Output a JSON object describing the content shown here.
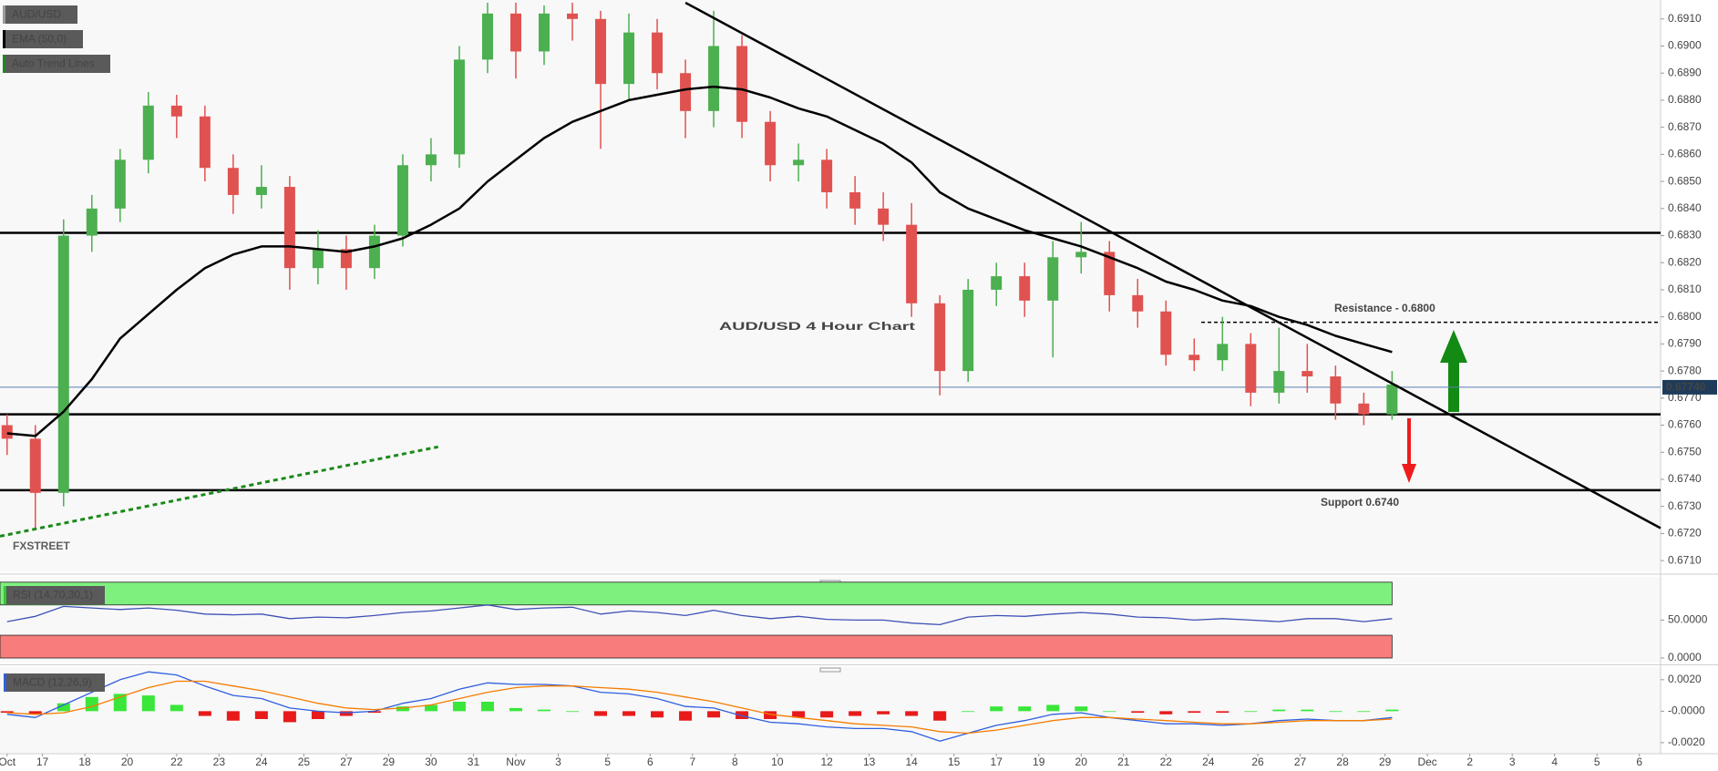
{
  "chart_data": [
    {
      "type": "candlestick",
      "title": "AUD/USD 4 Hour Chart",
      "symbol": "AUD/USD",
      "watermark": "FXSTREET",
      "up_color": "#4caf50",
      "down_color": "#e0524f",
      "x": [
        0,
        4,
        8,
        12,
        16,
        20,
        24,
        28,
        32,
        36,
        40,
        44,
        48,
        52,
        56,
        60,
        64,
        68,
        72,
        76,
        80,
        84,
        88,
        92,
        96,
        100,
        104,
        108,
        112,
        116,
        120,
        124,
        128,
        132,
        136,
        140,
        144,
        148,
        152,
        156,
        160,
        164,
        168,
        172,
        176,
        180,
        184,
        188,
        192,
        196
      ],
      "open": [
        0.676,
        0.6755,
        0.6735,
        0.683,
        0.684,
        0.6858,
        0.6878,
        0.6874,
        0.6855,
        0.6845,
        0.6848,
        0.6818,
        0.6825,
        0.6818,
        0.683,
        0.6856,
        0.686,
        0.6895,
        0.6912,
        0.6898,
        0.6912,
        0.691,
        0.6886,
        0.6905,
        0.689,
        0.6876,
        0.69,
        0.6872,
        0.6856,
        0.6858,
        0.6846,
        0.684,
        0.6834,
        0.6805,
        0.678,
        0.681,
        0.6815,
        0.6806,
        0.6822,
        0.6824,
        0.6808,
        0.6802,
        0.6786,
        0.6784,
        0.679,
        0.6772,
        0.678,
        0.6778,
        0.6768,
        0.6764
      ],
      "high": [
        0.6764,
        0.676,
        0.6836,
        0.6845,
        0.6862,
        0.6883,
        0.6882,
        0.6878,
        0.686,
        0.6856,
        0.6852,
        0.6832,
        0.683,
        0.6834,
        0.686,
        0.6866,
        0.69,
        0.6916,
        0.6916,
        0.6915,
        0.6916,
        0.6913,
        0.6912,
        0.691,
        0.6895,
        0.6913,
        0.6904,
        0.6876,
        0.6864,
        0.6862,
        0.6852,
        0.6846,
        0.6842,
        0.6808,
        0.6814,
        0.682,
        0.682,
        0.6828,
        0.6835,
        0.6828,
        0.6814,
        0.6806,
        0.6792,
        0.68,
        0.6794,
        0.6796,
        0.679,
        0.6782,
        0.6772,
        0.678
      ],
      "low": [
        0.6749,
        0.6722,
        0.673,
        0.6824,
        0.6835,
        0.6853,
        0.6866,
        0.685,
        0.6838,
        0.684,
        0.681,
        0.6812,
        0.681,
        0.6814,
        0.6826,
        0.685,
        0.6855,
        0.689,
        0.6888,
        0.6893,
        0.6902,
        0.6862,
        0.688,
        0.6884,
        0.6866,
        0.687,
        0.6866,
        0.685,
        0.685,
        0.684,
        0.6834,
        0.6828,
        0.68,
        0.6771,
        0.6776,
        0.6804,
        0.68,
        0.6785,
        0.6816,
        0.6802,
        0.6796,
        0.6782,
        0.678,
        0.678,
        0.6767,
        0.6768,
        0.6772,
        0.6762,
        0.676,
        0.6762
      ],
      "close": [
        0.6755,
        0.6735,
        0.683,
        0.684,
        0.6858,
        0.6878,
        0.6874,
        0.6855,
        0.6845,
        0.6848,
        0.6818,
        0.6825,
        0.6818,
        0.683,
        0.6856,
        0.686,
        0.6895,
        0.6912,
        0.6898,
        0.6912,
        0.691,
        0.6886,
        0.6905,
        0.689,
        0.6876,
        0.69,
        0.6872,
        0.6856,
        0.6858,
        0.6846,
        0.684,
        0.6834,
        0.6805,
        0.678,
        0.681,
        0.6815,
        0.6806,
        0.6822,
        0.6824,
        0.6808,
        0.6802,
        0.6786,
        0.6784,
        0.679,
        0.6772,
        0.678,
        0.6778,
        0.6768,
        0.6764,
        0.6775
      ],
      "series": [
        {
          "name": "EMA (50,0)",
          "color": "#000000",
          "values": [
            0.6757,
            0.6756,
            0.6765,
            0.6777,
            0.6792,
            0.6801,
            0.681,
            0.6818,
            0.6823,
            0.6826,
            0.6826,
            0.6825,
            0.6824,
            0.6826,
            0.6829,
            0.6834,
            0.684,
            0.685,
            0.6858,
            0.6866,
            0.6872,
            0.6876,
            0.688,
            0.6882,
            0.6884,
            0.6885,
            0.6884,
            0.6881,
            0.6877,
            0.6874,
            0.6869,
            0.6864,
            0.6857,
            0.6846,
            0.684,
            0.6836,
            0.6832,
            0.6829,
            0.6826,
            0.6822,
            0.6818,
            0.6813,
            0.681,
            0.6806,
            0.6804,
            0.68,
            0.6797,
            0.6793,
            0.679,
            0.6787
          ]
        }
      ],
      "trend_lines": {
        "name": "Auto Trend Lines",
        "lines": [
          {
            "x": [
              96,
              234
            ],
            "y": [
              0.6916,
              0.6722
            ],
            "color": "#000000",
            "dash": false
          },
          {
            "x": [
              -1,
              61
            ],
            "y": [
              0.6719,
              0.6752
            ],
            "color": "#1a8a1a",
            "dash": true
          }
        ]
      },
      "levels": [
        0.6831,
        0.6764,
        0.6736
      ],
      "dashed_level": {
        "from": 169,
        "value": 0.6798
      },
      "last_price": {
        "value": 0.6774,
        "label": "0.67740"
      },
      "annotations": [
        "Resistance - 0.6800",
        "Support 0.6740"
      ],
      "xlim": [
        -1,
        234
      ],
      "ylim": [
        0.6706,
        0.6917
      ],
      "yticks": [
        {
          "value": 0.671,
          "label": "0.6710"
        },
        {
          "value": 0.672,
          "label": "0.6720"
        },
        {
          "value": 0.673,
          "label": "0.6730"
        },
        {
          "value": 0.674,
          "label": "0.6740"
        },
        {
          "value": 0.675,
          "label": "0.6750"
        },
        {
          "value": 0.676,
          "label": "0.6760"
        },
        {
          "value": 0.677,
          "label": "0.6770"
        },
        {
          "value": 0.678,
          "label": "0.6780"
        },
        {
          "value": 0.679,
          "label": "0.6790"
        },
        {
          "value": 0.68,
          "label": "0.6800"
        },
        {
          "value": 0.681,
          "label": "0.6810"
        },
        {
          "value": 0.682,
          "label": "0.6820"
        },
        {
          "value": 0.683,
          "label": "0.6830"
        },
        {
          "value": 0.684,
          "label": "0.6840"
        },
        {
          "value": 0.685,
          "label": "0.6850"
        },
        {
          "value": 0.686,
          "label": "0.6860"
        },
        {
          "value": 0.687,
          "label": "0.6870"
        },
        {
          "value": 0.688,
          "label": "0.6880"
        },
        {
          "value": 0.689,
          "label": "0.6890"
        },
        {
          "value": 0.69,
          "label": "0.6900"
        },
        {
          "value": 0.691,
          "label": "0.6910"
        }
      ]
    },
    {
      "type": "line",
      "name": "RSI (14,70,30,1)",
      "color": "#3f51b5",
      "x": [
        0,
        4,
        8,
        12,
        16,
        20,
        24,
        28,
        32,
        36,
        40,
        44,
        48,
        52,
        56,
        60,
        64,
        68,
        72,
        76,
        80,
        84,
        88,
        92,
        96,
        100,
        104,
        108,
        112,
        116,
        120,
        124,
        128,
        132,
        136,
        140,
        144,
        148,
        152,
        156,
        160,
        164,
        168,
        172,
        176,
        180,
        184,
        188,
        192,
        196
      ],
      "values": [
        48,
        55,
        68,
        66,
        64,
        66,
        63,
        58,
        57,
        58,
        52,
        54,
        53,
        56,
        60,
        62,
        66,
        70,
        64,
        66,
        67,
        58,
        62,
        60,
        56,
        63,
        56,
        52,
        55,
        51,
        50,
        50,
        46,
        44,
        54,
        56,
        55,
        58,
        60,
        58,
        54,
        53,
        50,
        52,
        50,
        48,
        52,
        52,
        48,
        52
      ],
      "bands": [
        {
          "from": 70,
          "to": 100,
          "color": "#7ef07e"
        },
        {
          "from": 0,
          "to": 30,
          "color": "#f87c7c"
        }
      ],
      "xlim": [
        -1,
        234
      ],
      "ylim": [
        -6,
        107
      ],
      "yticks": [
        {
          "value": 50,
          "label": "50.0000"
        },
        {
          "value": 0,
          "label": "0.0000"
        }
      ]
    },
    {
      "type": "macd",
      "name": "MACD (12,26,9)",
      "x": [
        0,
        4,
        8,
        12,
        16,
        20,
        24,
        28,
        32,
        36,
        40,
        44,
        48,
        52,
        56,
        60,
        64,
        68,
        72,
        76,
        80,
        84,
        88,
        92,
        96,
        100,
        104,
        108,
        112,
        116,
        120,
        124,
        128,
        132,
        136,
        140,
        144,
        148,
        152,
        156,
        160,
        164,
        168,
        172,
        176,
        180,
        184,
        188,
        192,
        196
      ],
      "lines": [
        {
          "color": "#2f5fe0",
          "values": [
            -0.0002,
            -0.0004,
            0.0004,
            0.0012,
            0.002,
            0.0025,
            0.0023,
            0.0016,
            0.001,
            0.0008,
            0.0002,
            0.0,
            -0.0001,
            0.0,
            0.0005,
            0.0008,
            0.0014,
            0.0018,
            0.0017,
            0.0017,
            0.0016,
            0.0012,
            0.0011,
            0.0008,
            0.0003,
            0.0002,
            -0.0003,
            -0.0007,
            -0.0008,
            -0.001,
            -0.0011,
            -0.0011,
            -0.0013,
            -0.0019,
            -0.0014,
            -0.0009,
            -0.0006,
            -0.0002,
            -0.0001,
            -0.0004,
            -0.0006,
            -0.0008,
            -0.0008,
            -0.0009,
            -0.0008,
            -0.0006,
            -0.0005,
            -0.0006,
            -0.0006,
            -0.0004
          ]
        },
        {
          "color": "#f57c00",
          "values": [
            -0.0001,
            -0.0002,
            -0.0001,
            0.0003,
            0.0009,
            0.0015,
            0.0019,
            0.0019,
            0.0016,
            0.0013,
            0.0009,
            0.0005,
            0.0002,
            0.0001,
            0.0002,
            0.0004,
            0.0008,
            0.0012,
            0.0015,
            0.0016,
            0.0016,
            0.0015,
            0.0014,
            0.0012,
            0.0009,
            0.0006,
            0.0002,
            -0.0002,
            -0.0004,
            -0.0006,
            -0.0008,
            -0.0009,
            -0.001,
            -0.0013,
            -0.0014,
            -0.0012,
            -0.0009,
            -0.0006,
            -0.0004,
            -0.0004,
            -0.0005,
            -0.0006,
            -0.0007,
            -0.0008,
            -0.0008,
            -0.0007,
            -0.0006,
            -0.0006,
            -0.0006,
            -0.0005
          ]
        }
      ],
      "histogram": {
        "up_color": "#39e639",
        "down_color": "#e81a1a",
        "values": [
          -0.0001,
          -0.0002,
          0.0005,
          0.0009,
          0.0011,
          0.001,
          0.0004,
          -0.0003,
          -0.0006,
          -0.0005,
          -0.0007,
          -0.0005,
          -0.0003,
          -0.0001,
          0.0003,
          0.0004,
          0.0006,
          0.0006,
          0.0002,
          0.0001,
          0.0,
          -0.0003,
          -0.0003,
          -0.0004,
          -0.0006,
          -0.0004,
          -0.0005,
          -0.0005,
          -0.0004,
          -0.0004,
          -0.0003,
          -0.0002,
          -0.0003,
          -0.0006,
          0.0,
          0.0003,
          0.0003,
          0.0004,
          0.0003,
          0.0,
          -0.0001,
          -0.0002,
          -0.0001,
          -0.0001,
          0.0,
          0.0001,
          0.0001,
          0.0,
          0.0,
          0.0001
        ]
      },
      "xlim": [
        -1,
        234
      ],
      "ylim": [
        -0.0027,
        0.0028
      ],
      "yticks": [
        {
          "value": 0.002,
          "label": "0.0020"
        },
        {
          "value": 0,
          "label": "-0.0000"
        },
        {
          "value": -0.002,
          "label": "-0.0020"
        }
      ],
      "xticks": [
        {
          "value": 0,
          "label": "Oct"
        },
        {
          "value": 5,
          "label": "17"
        },
        {
          "value": 11,
          "label": "18"
        },
        {
          "value": 17,
          "label": "20"
        },
        {
          "value": 24,
          "label": "22"
        },
        {
          "value": 30,
          "label": "23"
        },
        {
          "value": 36,
          "label": "24"
        },
        {
          "value": 42,
          "label": "25"
        },
        {
          "value": 48,
          "label": "27"
        },
        {
          "value": 54,
          "label": "29"
        },
        {
          "value": 60,
          "label": "30"
        },
        {
          "value": 66,
          "label": "31"
        },
        {
          "value": 72,
          "label": "Nov"
        },
        {
          "value": 78,
          "label": "3"
        },
        {
          "value": 85,
          "label": "5"
        },
        {
          "value": 91,
          "label": "6"
        },
        {
          "value": 97,
          "label": "7"
        },
        {
          "value": 103,
          "label": "8"
        },
        {
          "value": 109,
          "label": "10"
        },
        {
          "value": 116,
          "label": "12"
        },
        {
          "value": 122,
          "label": "13"
        },
        {
          "value": 128,
          "label": "14"
        },
        {
          "value": 134,
          "label": "15"
        },
        {
          "value": 140,
          "label": "17"
        },
        {
          "value": 146,
          "label": "19"
        },
        {
          "value": 152,
          "label": "20"
        },
        {
          "value": 158,
          "label": "21"
        },
        {
          "value": 164,
          "label": "22"
        },
        {
          "value": 170,
          "label": "24"
        },
        {
          "value": 177,
          "label": "26"
        },
        {
          "value": 183,
          "label": "27"
        },
        {
          "value": 189,
          "label": "28"
        },
        {
          "value": 195,
          "label": "29"
        },
        {
          "value": 201,
          "label": "Dec"
        },
        {
          "value": 207,
          "label": "2"
        },
        {
          "value": 213,
          "label": "3"
        },
        {
          "value": 219,
          "label": "4"
        },
        {
          "value": 225,
          "label": "5"
        },
        {
          "value": 231,
          "label": "6"
        }
      ]
    }
  ]
}
